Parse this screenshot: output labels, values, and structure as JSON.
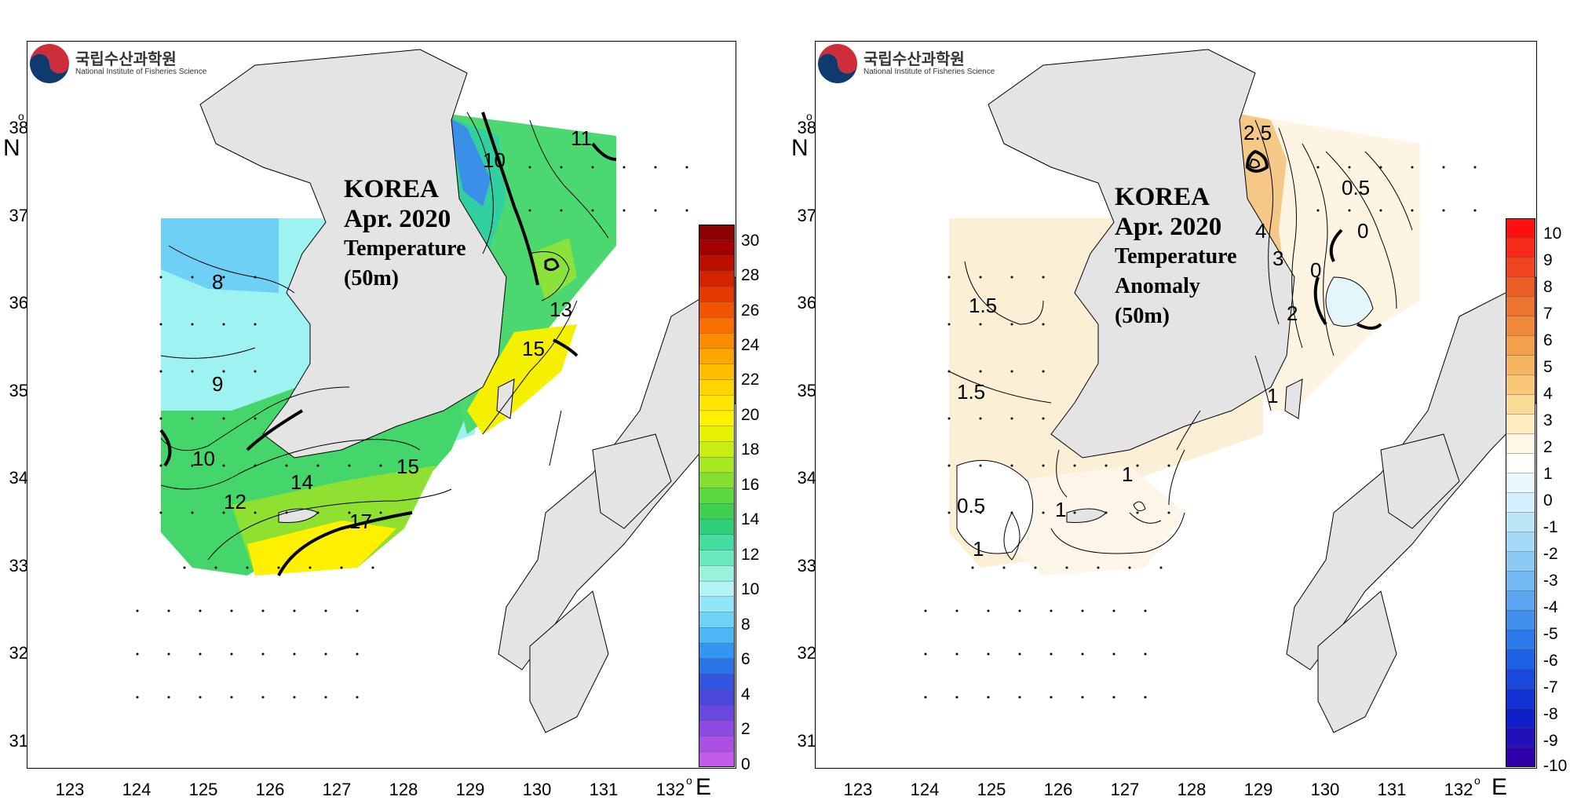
{
  "logo": {
    "korean": "국립수산과학원",
    "english": "National Institute of Fisheries Science"
  },
  "axes": {
    "lon_ticks": [
      "123",
      "124",
      "125",
      "126",
      "127",
      "128",
      "129",
      "130",
      "131",
      "132"
    ],
    "lat_ticks": [
      "38",
      "37",
      "36",
      "35",
      "34",
      "33",
      "32",
      "31"
    ],
    "lon_unit": "E",
    "lat_unit": "N",
    "degree_mark": "o"
  },
  "panels": [
    {
      "title": [
        "KOREA",
        "Apr. 2020",
        "Temperature",
        "(50m)"
      ],
      "colorbar": {
        "labels": [
          "30",
          "28",
          "26",
          "24",
          "22",
          "20",
          "18",
          "16",
          "14",
          "12",
          "10",
          "8",
          "6",
          "4",
          "2",
          "0"
        ],
        "colors_top_to_bottom": [
          "#8b0000",
          "#a30000",
          "#bb1000",
          "#d32400",
          "#e23a00",
          "#f05400",
          "#f86e00",
          "#fa8c00",
          "#fca600",
          "#fdbd00",
          "#ffd300",
          "#ffe600",
          "#fff200",
          "#e6f200",
          "#c8ee10",
          "#a8e820",
          "#86df30",
          "#5ed840",
          "#3ccf50",
          "#30d07a",
          "#44dca0",
          "#6ae8c0",
          "#98f2dc",
          "#b4f4f4",
          "#92e6f8",
          "#6ed2f8",
          "#4cb8f6",
          "#3296f2",
          "#2a74e8",
          "#3256e0",
          "#4a48dc",
          "#6a48e0",
          "#8c4ae0",
          "#aa50e4",
          "#c45ae8"
        ],
        "color_top": "#8b0000",
        "color_bottom": "#cc66ee"
      },
      "contour_labels": [
        "8",
        "9",
        "10",
        "10",
        "11",
        "12",
        "13",
        "14",
        "15",
        "15",
        "17"
      ]
    },
    {
      "title": [
        "KOREA",
        "Apr. 2020",
        "Temperature",
        "Anomaly",
        "(50m)"
      ],
      "colorbar": {
        "labels": [
          "10",
          "9",
          "8",
          "7",
          "6",
          "5",
          "4",
          "3",
          "2",
          "1",
          "0",
          "-1",
          "-2",
          "-3",
          "-4",
          "-5",
          "-6",
          "-7",
          "-8",
          "-9",
          "-10"
        ],
        "colors_top_to_bottom": [
          "#ff1010",
          "#f62a18",
          "#ee4420",
          "#ea5e28",
          "#ec7430",
          "#ef8a3a",
          "#f2a04c",
          "#f5b460",
          "#f8c878",
          "#fadc98",
          "#fcecc0",
          "#fef8e4",
          "#ffffff",
          "#eaf8fc",
          "#d4f0fa",
          "#bce6f8",
          "#a4daf6",
          "#8ccaf4",
          "#74b8f2",
          "#5aa4f0",
          "#4290ee",
          "#2c7aea",
          "#1e62e4",
          "#1848dc",
          "#1232d2",
          "#1020c8",
          "#2410b8",
          "#3000aa"
        ],
        "color_top": "#ff1010",
        "color_bottom": "#3000aa"
      },
      "contour_labels": [
        "2.5",
        "0.5",
        "0",
        "0",
        "4",
        "3",
        "2",
        "1.5",
        "1.5",
        "1",
        "1",
        "1",
        "0.5",
        "1"
      ]
    }
  ]
}
